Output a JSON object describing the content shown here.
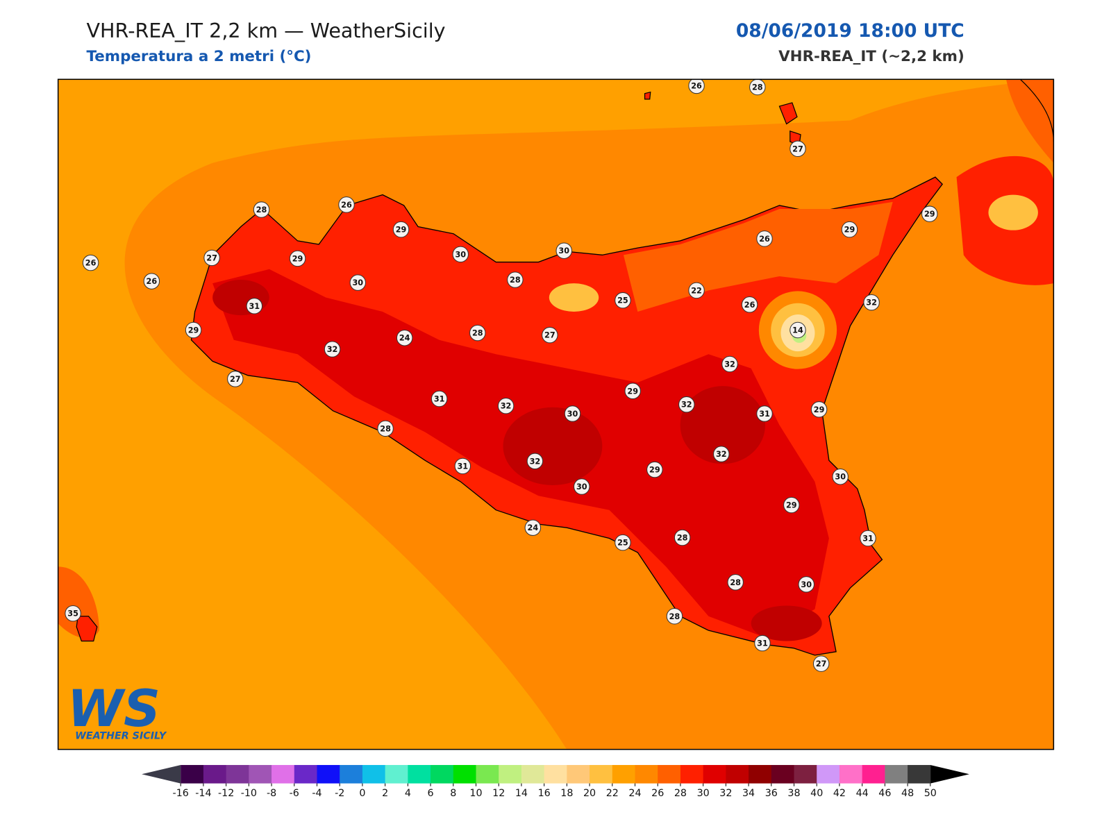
{
  "header": {
    "title": "VHR-REA_IT 2,2 km — WeatherSicily",
    "subtitle": "Temperatura a 2 metri (°C)",
    "timestamp": "08/06/2019 18:00 UTC",
    "model": "VHR-REA_IT (~2,2 km)"
  },
  "stations": [
    26,
    28,
    27,
    28,
    26,
    29,
    29,
    29,
    26,
    30,
    30,
    27,
    29,
    26,
    26,
    30,
    28,
    22,
    25,
    26,
    32,
    31,
    14,
    29,
    24,
    28,
    27,
    32,
    32,
    27,
    29,
    31,
    32,
    30,
    32,
    31,
    29,
    28,
    32,
    31,
    32,
    29,
    30,
    30,
    29,
    24,
    28,
    25,
    31,
    28,
    30,
    35,
    28,
    31,
    27
  ],
  "colorbar": {
    "ticks": [
      -16,
      -14,
      -12,
      -10,
      -8,
      -6,
      -4,
      -2,
      0,
      2,
      4,
      6,
      8,
      10,
      12,
      14,
      16,
      18,
      20,
      22,
      24,
      26,
      28,
      30,
      32,
      34,
      36,
      38,
      40,
      42,
      44,
      46,
      48,
      50
    ],
    "colors": [
      "#3a0048",
      "#6a1a8a",
      "#7e3598",
      "#a055b5",
      "#e070e8",
      "#6a28c8",
      "#1010f8",
      "#1c7fdb",
      "#10c0e8",
      "#60f0d0",
      "#00e0a0",
      "#00d860",
      "#00e000",
      "#7ae850",
      "#c0f080",
      "#e0e898",
      "#ffe0a0",
      "#ffc878",
      "#ffc040",
      "#ffa000",
      "#ff8800",
      "#ff6000",
      "#ff2000",
      "#e00000",
      "#c00000",
      "#900000",
      "#6a0020",
      "#7d2040",
      "#d098f8",
      "#ff70c8",
      "#ff2090",
      "#808080",
      "#383838"
    ],
    "under": "#3a3a48",
    "over": "#000000"
  },
  "logo": {
    "mark": "WS",
    "name": "WEATHER SICILY"
  }
}
